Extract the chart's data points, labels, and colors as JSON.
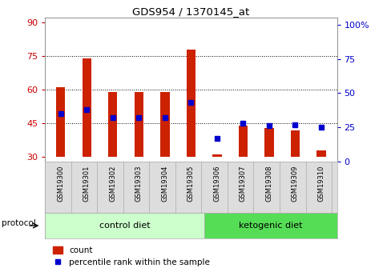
{
  "title": "GDS954 / 1370145_at",
  "samples": [
    "GSM19300",
    "GSM19301",
    "GSM19302",
    "GSM19303",
    "GSM19304",
    "GSM19305",
    "GSM19306",
    "GSM19307",
    "GSM19308",
    "GSM19309",
    "GSM19310"
  ],
  "bar_bottoms": [
    30,
    30,
    30,
    30,
    30,
    30,
    30,
    30,
    30,
    30,
    30
  ],
  "bar_tops": [
    61,
    74,
    59,
    59,
    59,
    78,
    31,
    44,
    43,
    42,
    33
  ],
  "dot_values_right": [
    35,
    38,
    32,
    32,
    32,
    43,
    17,
    28,
    26,
    27,
    25
  ],
  "ylim_left": [
    28,
    92
  ],
  "ylim_right": [
    0,
    105
  ],
  "yticks_left": [
    30,
    45,
    60,
    75,
    90
  ],
  "yticks_right": [
    0,
    25,
    50,
    75,
    100
  ],
  "ylabel_left_color": "#cc0000",
  "ylabel_right_color": "#0000cc",
  "bar_color": "#cc2200",
  "dot_color": "#0000cc",
  "bg_color": "#ffffff",
  "grid_color": "#000000",
  "control_diet_color": "#ccffcc",
  "ketogenic_diet_color": "#55dd55",
  "n_control": 6,
  "n_keto": 5,
  "protocol_label": "protocol",
  "control_label": "control diet",
  "ketogenic_label": "ketogenic diet",
  "legend_count": "count",
  "legend_percentile": "percentile rank within the sample",
  "bar_width": 0.35,
  "figsize": [
    4.89,
    3.45
  ],
  "dpi": 100
}
